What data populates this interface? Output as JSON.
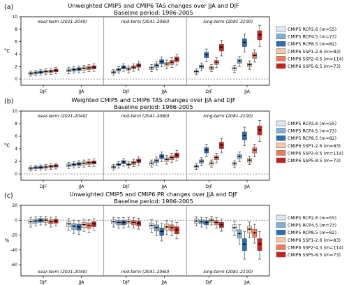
{
  "colors": [
    "#dbe9f6",
    "#7fb1d8",
    "#2b6fb1",
    "#fbc7a5",
    "#f17a5b",
    "#c8221f"
  ],
  "periods": [
    "near-term (2021-2040)",
    "mid-term (2041-2060)",
    "long-term (2081-2100)"
  ],
  "seasons": [
    "DJF",
    "JJA"
  ],
  "legend": [
    "CMIP5 RCP2.6 (m=55)",
    "CMIP5 RCP4.5 (m=73)",
    "CMIP5 RCP8.5 (m=82)",
    "CMIP6 SSP1-2.6 (m=83)",
    "CMIP6 SSP2-4.5 (m=114)",
    "CMIP6 SSP5-8.5 (m=73)"
  ],
  "chart_data": [
    {
      "type": "box",
      "panel_label": "(a)",
      "title": "Unweighted CMIP5 and CMIP6 TAS changes over JJA and DJF",
      "subtitle": "Baseline period: 1986-2005",
      "ylabel": "°C",
      "ylim": [
        -1,
        10
      ],
      "yticks": [
        0,
        2,
        4,
        6,
        8,
        10
      ],
      "zero_line": true,
      "period_label_position": "top",
      "series_medians": {
        "near-term (2021-2040)": {
          "DJF": [
            0.9,
            1.0,
            1.1,
            1.2,
            1.25,
            1.4
          ],
          "JJA": [
            1.4,
            1.5,
            1.6,
            1.7,
            1.8,
            1.9
          ]
        },
        "mid-term (2041-2060)": {
          "DJF": [
            1.1,
            1.5,
            1.9,
            1.6,
            1.9,
            2.2
          ],
          "JJA": [
            1.8,
            2.2,
            2.8,
            2.4,
            2.7,
            3.2
          ]
        },
        "long-term (2081-2100)": {
          "DJF": [
            1.2,
            2.0,
            3.9,
            1.8,
            2.7,
            5.1
          ],
          "JJA": [
            1.7,
            2.9,
            5.9,
            2.3,
            3.8,
            7.1
          ]
        }
      }
    },
    {
      "type": "box",
      "panel_label": "(b)",
      "title": "Weighted CMIP5 and CMIP6 TAS changes over JJA and DJF",
      "subtitle": "Baseline period: 1986-2005",
      "ylabel": "°C",
      "ylim": [
        -1,
        10
      ],
      "yticks": [
        0,
        2,
        4,
        6,
        8,
        10
      ],
      "zero_line": true,
      "period_label_position": "top",
      "series_medians": {
        "near-term (2021-2040)": {
          "DJF": [
            0.9,
            1.0,
            1.05,
            1.1,
            1.2,
            1.3
          ],
          "JJA": [
            1.4,
            1.5,
            1.6,
            1.7,
            1.8,
            1.85
          ]
        },
        "mid-term (2041-2060)": {
          "DJF": [
            1.1,
            1.5,
            1.9,
            1.5,
            1.8,
            2.1
          ],
          "JJA": [
            1.7,
            2.1,
            2.8,
            2.3,
            2.6,
            3.0
          ]
        },
        "long-term (2081-2100)": {
          "DJF": [
            1.2,
            2.0,
            3.8,
            1.7,
            2.6,
            4.6
          ],
          "JJA": [
            1.6,
            2.8,
            6.1,
            2.2,
            3.8,
            7.0
          ]
        }
      }
    },
    {
      "type": "box",
      "panel_label": "(c)",
      "title": "Unweighted CMIP5 and CMIP6 PR changes over JJA and DJF",
      "subtitle": "Baseline period: 1986-2005",
      "ylabel": "%",
      "ylim": [
        -75,
        20
      ],
      "yticks": [
        -60,
        -40,
        -20,
        0,
        20
      ],
      "zero_line": true,
      "period_label_position": "bottom",
      "series_medians": {
        "near-term (2021-2040)": {
          "DJF": [
            -2,
            -1,
            0,
            0,
            -2,
            -1
          ],
          "JJA": [
            -5,
            -8,
            -9,
            -6,
            -7,
            -5
          ]
        },
        "mid-term (2041-2060)": {
          "DJF": [
            -2,
            -3,
            -3,
            -2,
            -3,
            -4
          ],
          "JJA": [
            -7,
            -10,
            -15,
            -9,
            -10,
            -13
          ]
        },
        "long-term (2081-2100)": {
          "DJF": [
            -1,
            -2,
            -3,
            0,
            -3,
            -6
          ],
          "JJA": [
            -10,
            -18,
            -32,
            -12,
            -17,
            -32
          ]
        }
      }
    }
  ]
}
